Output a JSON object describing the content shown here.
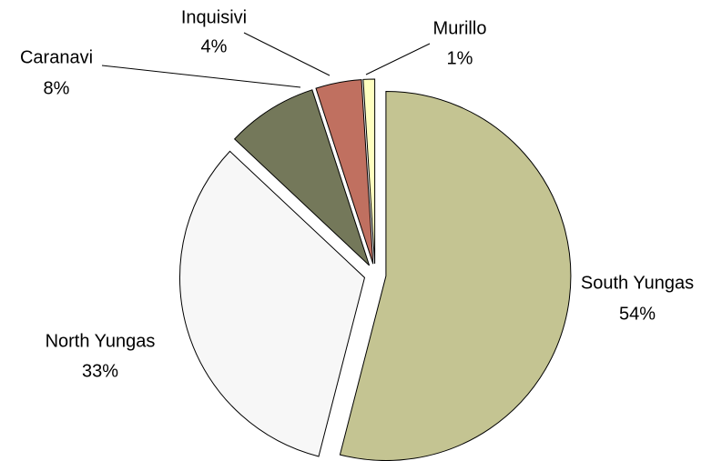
{
  "chart_data": {
    "type": "pie",
    "categories": [
      "South Yungas",
      "North Yungas",
      "Caranavi",
      "Inquisivi",
      "Murillo"
    ],
    "values": [
      54,
      33,
      8,
      4,
      1
    ],
    "value_labels": [
      "54%",
      "33%",
      "8%",
      "4%",
      "1%"
    ],
    "colors": [
      "#c4c492",
      "#f7f7f7",
      "#74785a",
      "#c07060",
      "#ffffc0"
    ]
  }
}
